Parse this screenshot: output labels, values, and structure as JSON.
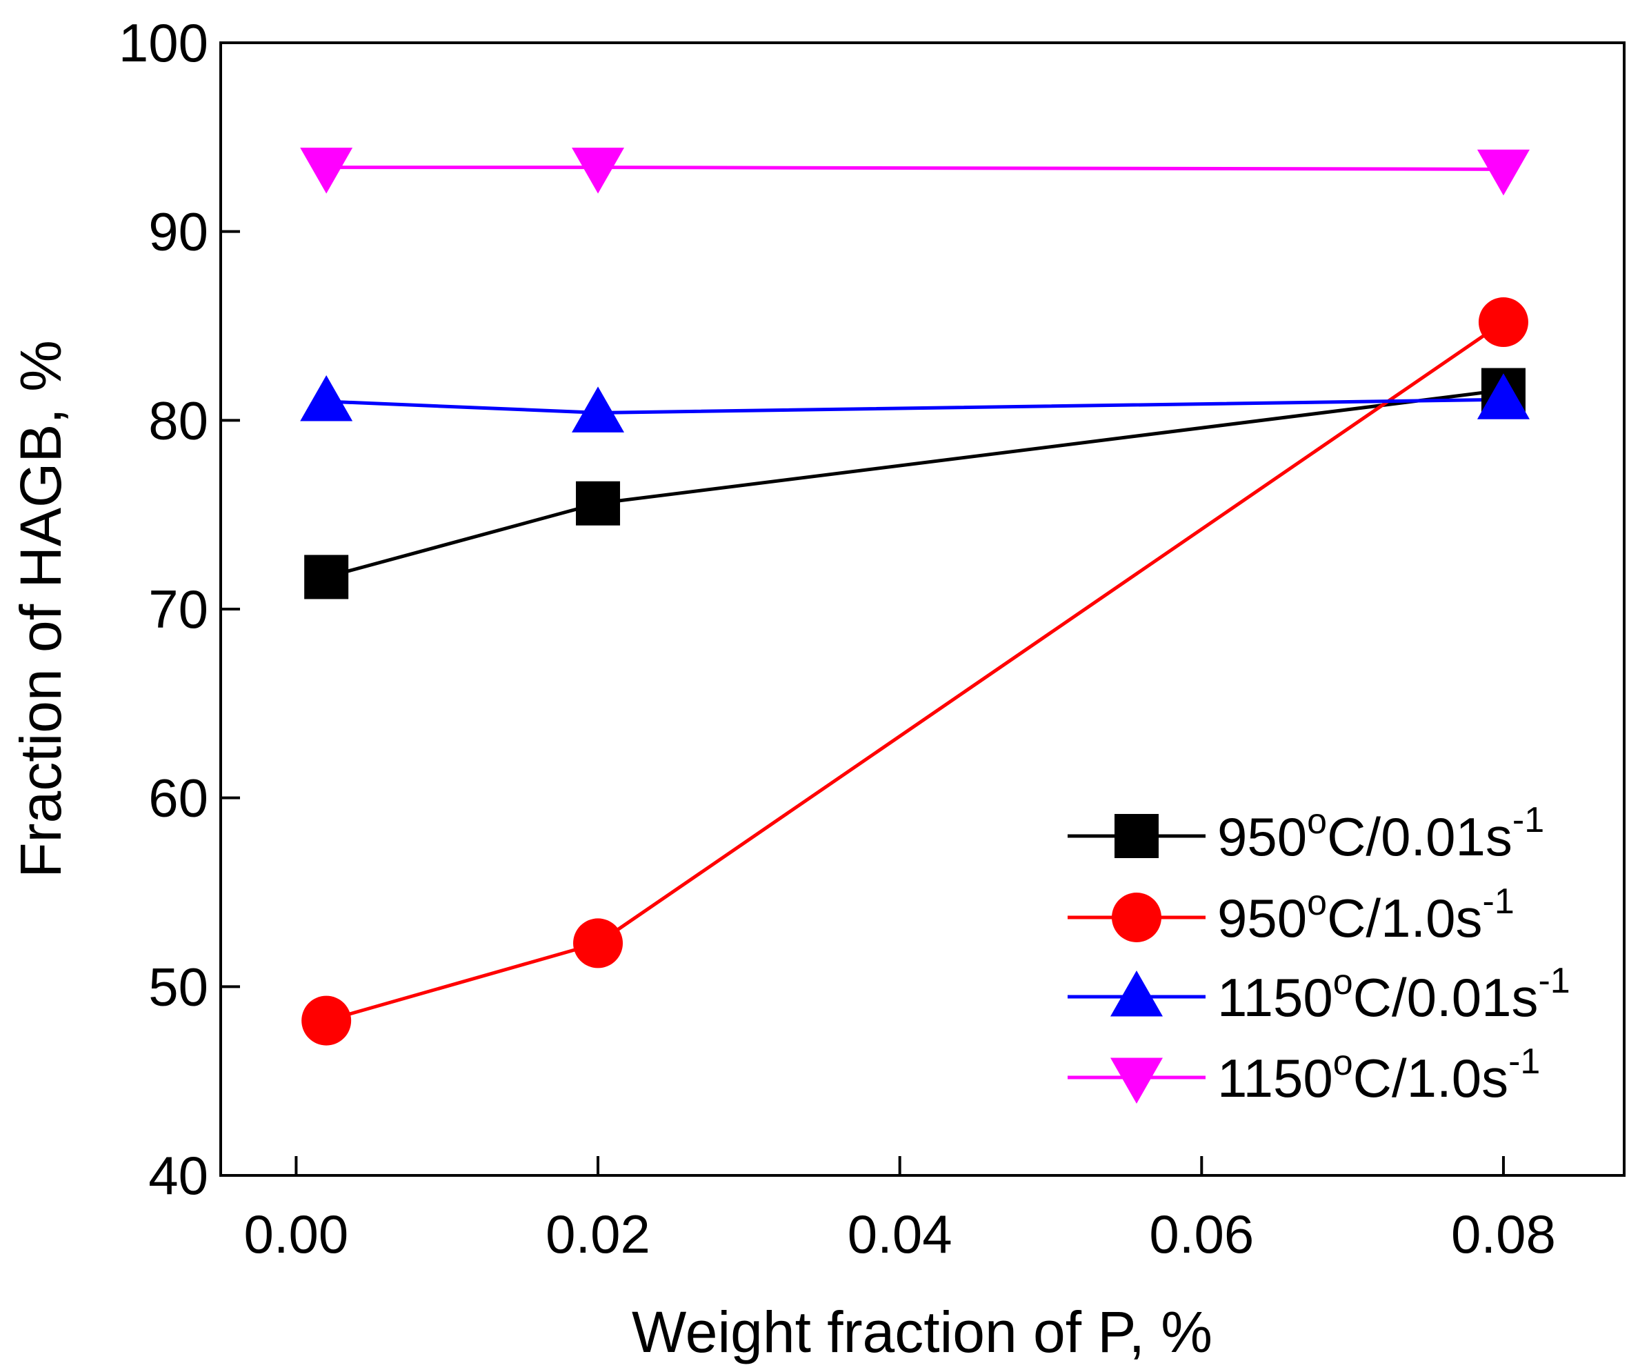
{
  "chart_data": {
    "type": "line",
    "title": "",
    "xlabel": "Weight fraction of P, %",
    "ylabel": "Fraction of HAGB, %",
    "xlim": [
      -0.005,
      0.088
    ],
    "ylim": [
      40,
      100
    ],
    "xticks": [
      "0.00",
      "0.02",
      "0.04",
      "0.06",
      "0.08"
    ],
    "yticks": [
      "40",
      "50",
      "60",
      "70",
      "80",
      "90",
      "100"
    ],
    "grid": false,
    "legend_position": "bottom-right",
    "x": [
      0.002,
      0.02,
      0.08
    ],
    "series": [
      {
        "name": "950°C/0.01s",
        "name_parts": [
          "950",
          "o",
          "C/0.01s",
          "-1"
        ],
        "values": [
          71.7,
          75.6,
          81.6
        ],
        "color": "#000000",
        "marker": "square"
      },
      {
        "name": "950°C/1.0s",
        "name_parts": [
          "950",
          "o",
          "C/1.0s",
          "-1"
        ],
        "values": [
          48.2,
          52.3,
          85.2
        ],
        "color": "#ff0000",
        "marker": "circle"
      },
      {
        "name": "1150°C/0.01s",
        "name_parts": [
          "1150",
          "o",
          "C/0.01s",
          "-1"
        ],
        "values": [
          81.0,
          80.4,
          81.1
        ],
        "color": "#0000ff",
        "marker": "triangle-up"
      },
      {
        "name": "1150°C/1.0s",
        "name_parts": [
          "1150",
          "o",
          "C/1.0s",
          "-1"
        ],
        "values": [
          93.4,
          93.4,
          93.3
        ],
        "color": "#ff00ff",
        "marker": "triangle-down"
      }
    ]
  }
}
